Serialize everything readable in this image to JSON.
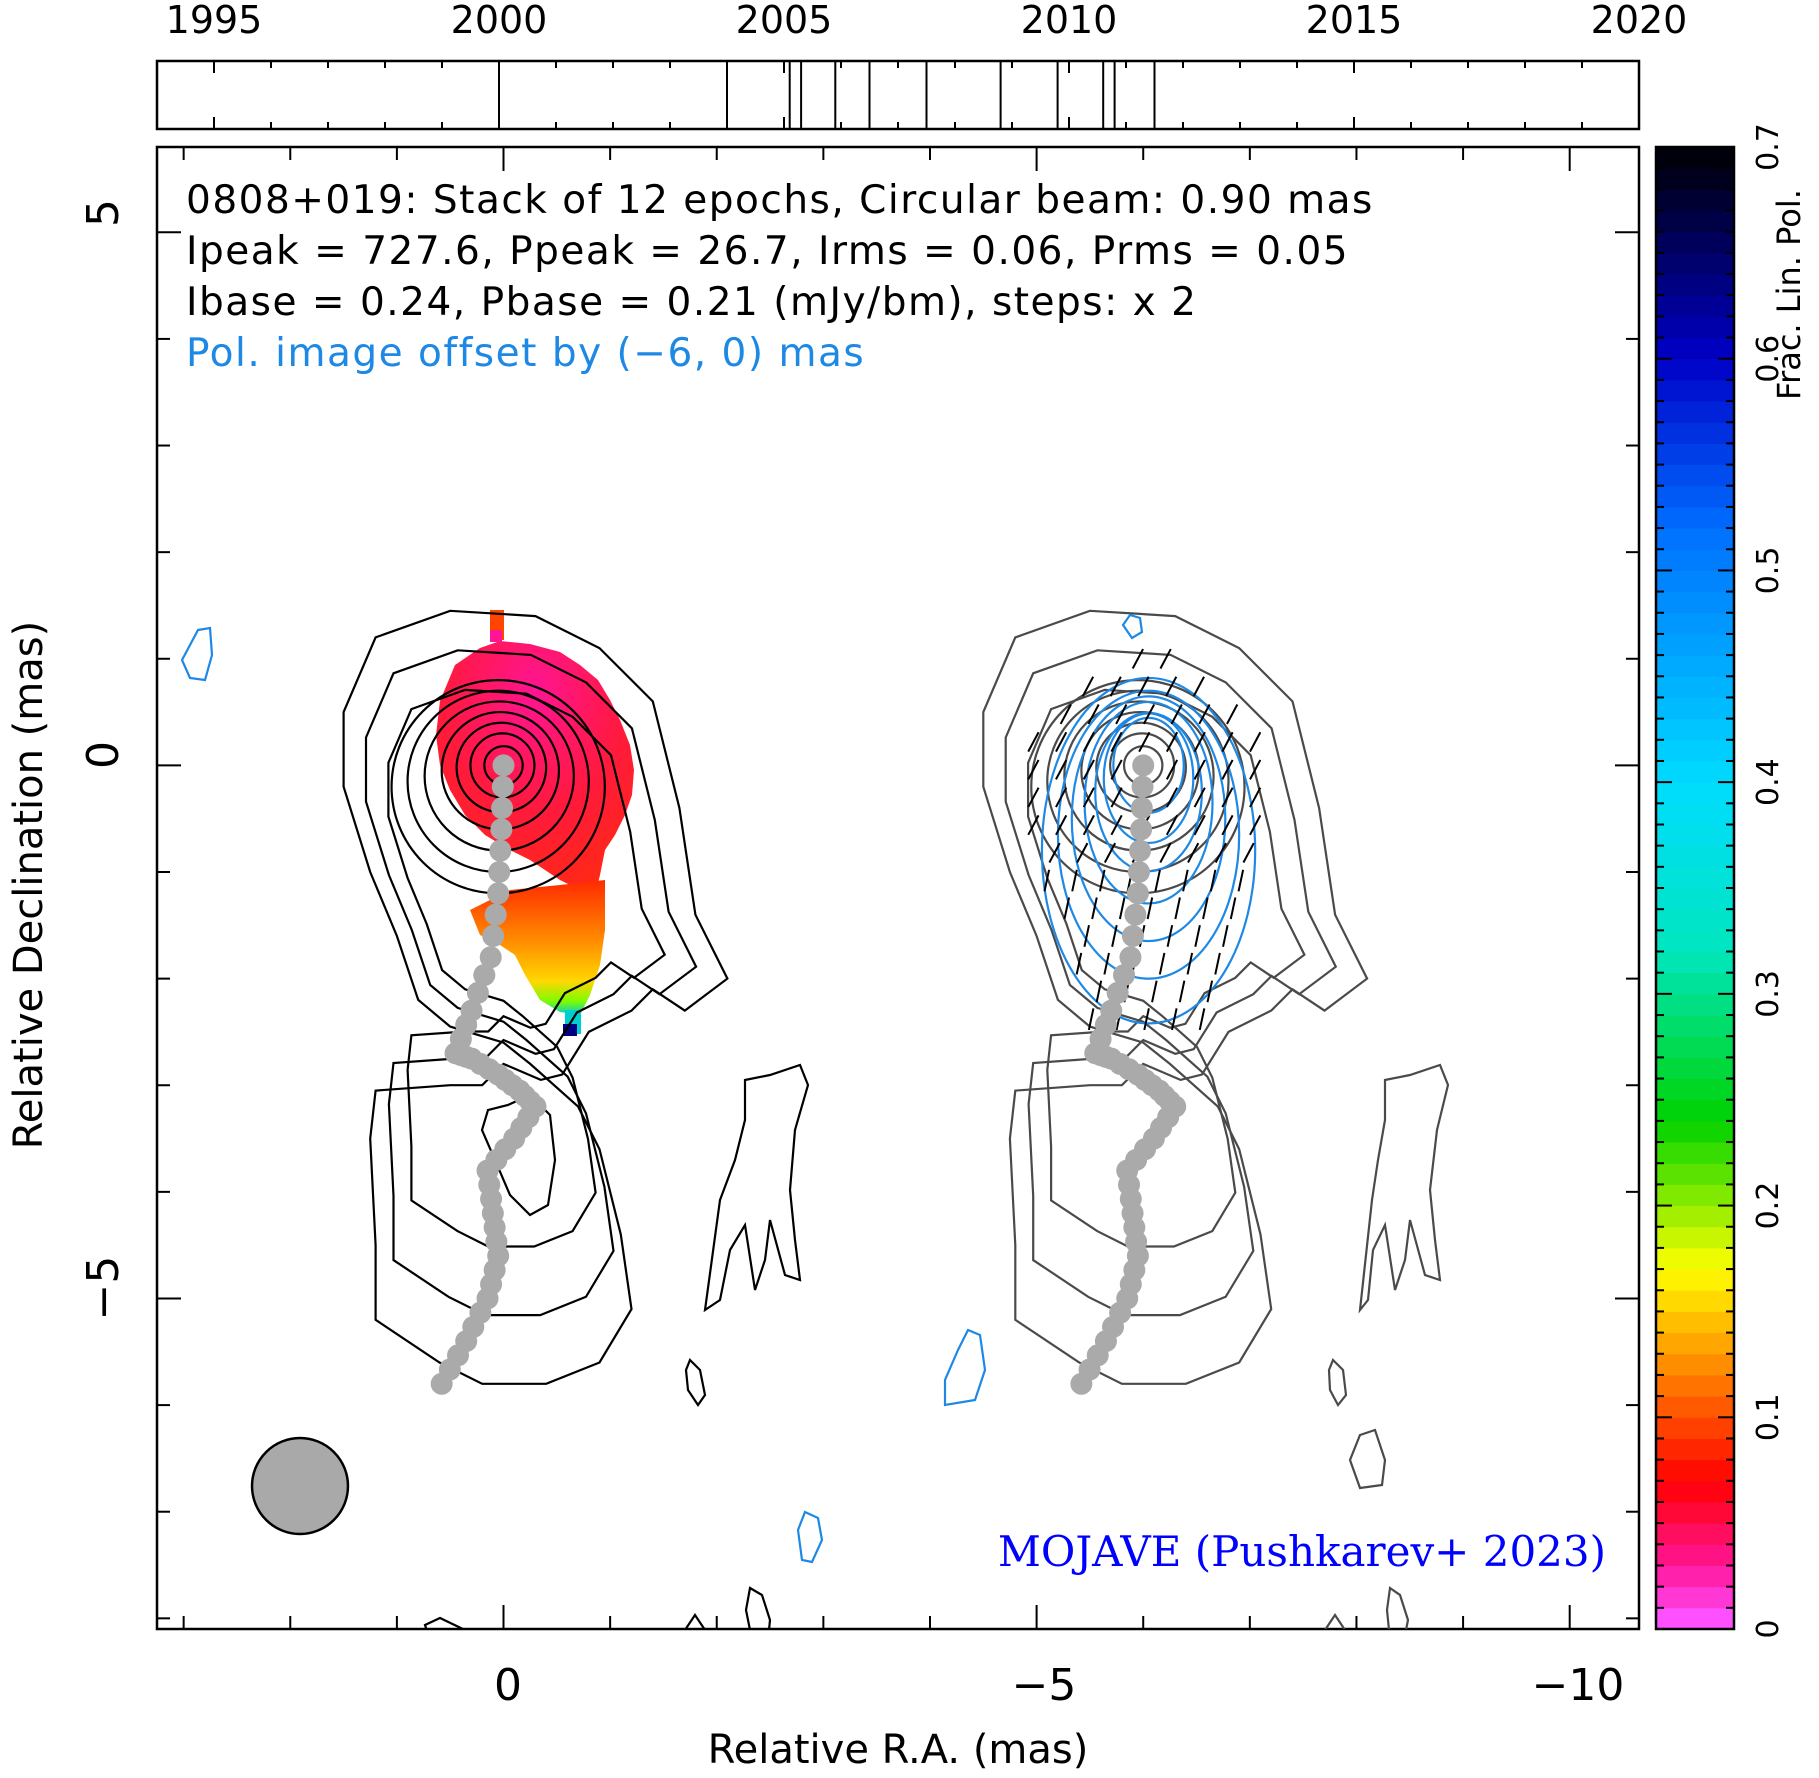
{
  "chart_data": {
    "type": "contour",
    "timeline": {
      "tick_labels": [
        "1995",
        "2000",
        "2005",
        "2010",
        "2015",
        "2020"
      ],
      "range": [
        1994,
        2020
      ],
      "epochs": [
        2000.0,
        2004.0,
        2005.1,
        2005.3,
        2005.9,
        2006.5,
        2007.5,
        2008.8,
        2009.8,
        2010.6,
        2010.8,
        2011.5
      ]
    },
    "annotations": {
      "line1": "0808+019: Stack of 12 epochs, Circular beam: 0.90 mas",
      "line2": "Ipeak = 727.6, Ppeak = 26.7, Irms = 0.06, Prms = 0.05",
      "line3": "Ibase = 0.24, Pbase = 0.21 (mJy/bm), steps: x 2",
      "line4": "Pol. image offset by (−6, 0) mas",
      "credit": "MOJAVE (Pushkarev+ 2023)"
    },
    "xlabel": "Relative R.A. (mas)",
    "ylabel": "Relative Declination (mas)",
    "x_ticklabels": [
      "0",
      "−5",
      "−10"
    ],
    "y_ticklabels": [
      "5",
      "0",
      "−5"
    ],
    "xlim": [
      3.25,
      -10.65
    ],
    "ylim": [
      -8.1,
      5.8
    ],
    "colorbar": {
      "label": "Frac. Lin. Pol.",
      "range": [
        0,
        0.7
      ],
      "tick_labels": [
        "0",
        "0.1",
        "0.2",
        "0.3",
        "0.4",
        "0.5",
        "0.6",
        "0.7"
      ]
    },
    "beam_diameter_mas": 0.9,
    "ridgeline_mas": [
      [
        0.0,
        0.0
      ],
      [
        0.02,
        -0.6
      ],
      [
        0.05,
        -1.2
      ],
      [
        0.12,
        -1.8
      ],
      [
        0.3,
        -2.3
      ],
      [
        0.45,
        -2.7
      ],
      [
        0.3,
        -2.75
      ],
      [
        0.05,
        -2.9
      ],
      [
        -0.15,
        -3.05
      ],
      [
        -0.3,
        -3.2
      ],
      [
        -0.1,
        -3.5
      ],
      [
        0.15,
        -3.8
      ],
      [
        0.1,
        -4.2
      ],
      [
        0.05,
        -4.6
      ],
      [
        0.15,
        -5.0
      ],
      [
        0.35,
        -5.4
      ],
      [
        0.58,
        -5.8
      ]
    ],
    "stokes_I_contours_mas": [
      {
        "level": 1,
        "shape": "envelope",
        "points": [
          [
            1.5,
            0.5
          ],
          [
            1.2,
            1.2
          ],
          [
            0.5,
            1.45
          ],
          [
            -0.3,
            1.4
          ],
          [
            -0.9,
            1.1
          ],
          [
            -1.4,
            0.6
          ],
          [
            -1.65,
            -0.4
          ],
          [
            -1.8,
            -1.4
          ],
          [
            -2.1,
            -2.0
          ],
          [
            -1.7,
            -2.3
          ],
          [
            -1.4,
            -2.1
          ],
          [
            -1.2,
            -2.3
          ],
          [
            -0.8,
            -2.5
          ],
          [
            -0.55,
            -2.9
          ],
          [
            -0.35,
            -2.95
          ],
          [
            0.0,
            -2.8
          ],
          [
            0.2,
            -3.0
          ],
          [
            0.5,
            -3.0
          ],
          [
            1.2,
            -3.05
          ],
          [
            1.25,
            -3.5
          ],
          [
            1.2,
            -4.5
          ],
          [
            1.2,
            -5.2
          ],
          [
            0.6,
            -5.6
          ],
          [
            0.2,
            -5.8
          ],
          [
            -0.4,
            -5.8
          ],
          [
            -0.9,
            -5.6
          ],
          [
            -1.2,
            -5.1
          ],
          [
            -1.1,
            -4.4
          ],
          [
            -0.9,
            -3.6
          ],
          [
            -0.7,
            -3.2
          ],
          [
            -0.25,
            -2.8
          ],
          [
            0.0,
            -2.6
          ],
          [
            0.5,
            -2.45
          ],
          [
            0.8,
            -2.2
          ],
          [
            1.0,
            -1.6
          ],
          [
            1.25,
            -1.0
          ],
          [
            1.5,
            -0.2
          ]
        ]
      },
      {
        "level": 2,
        "shape": "circle",
        "cx": 0.05,
        "cy": -0.2,
        "r": 1.0
      },
      {
        "level": 3,
        "shape": "circle",
        "cx": 0.05,
        "cy": -0.15,
        "r": 0.85
      },
      {
        "level": 4,
        "shape": "circle",
        "cx": 0.04,
        "cy": -0.1,
        "r": 0.7
      },
      {
        "level": 5,
        "shape": "circle",
        "cx": 0.03,
        "cy": -0.05,
        "r": 0.55
      },
      {
        "level": 6,
        "shape": "circle",
        "cx": 0.02,
        "cy": -0.02,
        "r": 0.42
      },
      {
        "level": 7,
        "shape": "circle",
        "cx": 0.01,
        "cy": 0.0,
        "r": 0.3
      },
      {
        "level": 8,
        "shape": "circle",
        "cx": 0.0,
        "cy": 0.0,
        "r": 0.18
      }
    ],
    "frac_pol_samples": [
      {
        "x": 0.0,
        "y": 0.0,
        "m": 0.02
      },
      {
        "x": 0.0,
        "y": -1.6,
        "m": 0.06
      },
      {
        "x": -0.2,
        "y": -2.2,
        "m": 0.14
      },
      {
        "x": -0.4,
        "y": -2.55,
        "m": 0.3
      },
      {
        "x": -0.55,
        "y": -2.75,
        "m": 0.62
      }
    ]
  }
}
